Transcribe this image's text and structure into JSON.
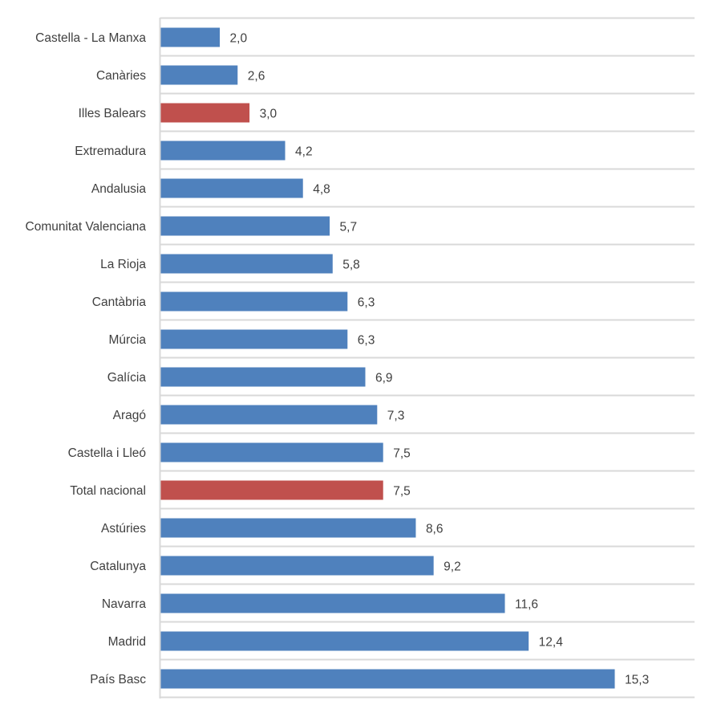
{
  "chart_data": {
    "type": "bar",
    "orientation": "horizontal",
    "title": "",
    "xlabel": "",
    "ylabel": "",
    "xlim": [
      0,
      18
    ],
    "grid": true,
    "legend": "none",
    "categories": [
      "Castella - La Manxa",
      "Canàries",
      "Illes Balears",
      "Extremadura",
      "Andalusia",
      "Comunitat Valenciana",
      "La Rioja",
      "Cantàbria",
      "Múrcia",
      "Galícia",
      "Aragó",
      "Castella i Lleó",
      "Total nacional",
      "Astúries",
      "Catalunya",
      "Navarra",
      "Madrid",
      "País Basc"
    ],
    "values": [
      2.0,
      2.6,
      3.0,
      4.2,
      4.8,
      5.7,
      5.8,
      6.3,
      6.3,
      6.9,
      7.3,
      7.5,
      7.5,
      8.6,
      9.2,
      11.6,
      12.4,
      15.3
    ],
    "value_labels": [
      "2,0",
      "2,6",
      "3,0",
      "4,2",
      "4,8",
      "5,7",
      "5,8",
      "6,3",
      "6,3",
      "6,9",
      "7,3",
      "7,5",
      "7,5",
      "8,6",
      "9,2",
      "11,6",
      "12,4",
      "15,3"
    ],
    "highlighted": [
      "Illes Balears",
      "Total nacional"
    ],
    "colors": {
      "default": "#4F81BD",
      "highlight": "#C0504D",
      "gridline": "#D9D9D9",
      "axis": "#D9D9D9",
      "text": "#404040"
    }
  }
}
